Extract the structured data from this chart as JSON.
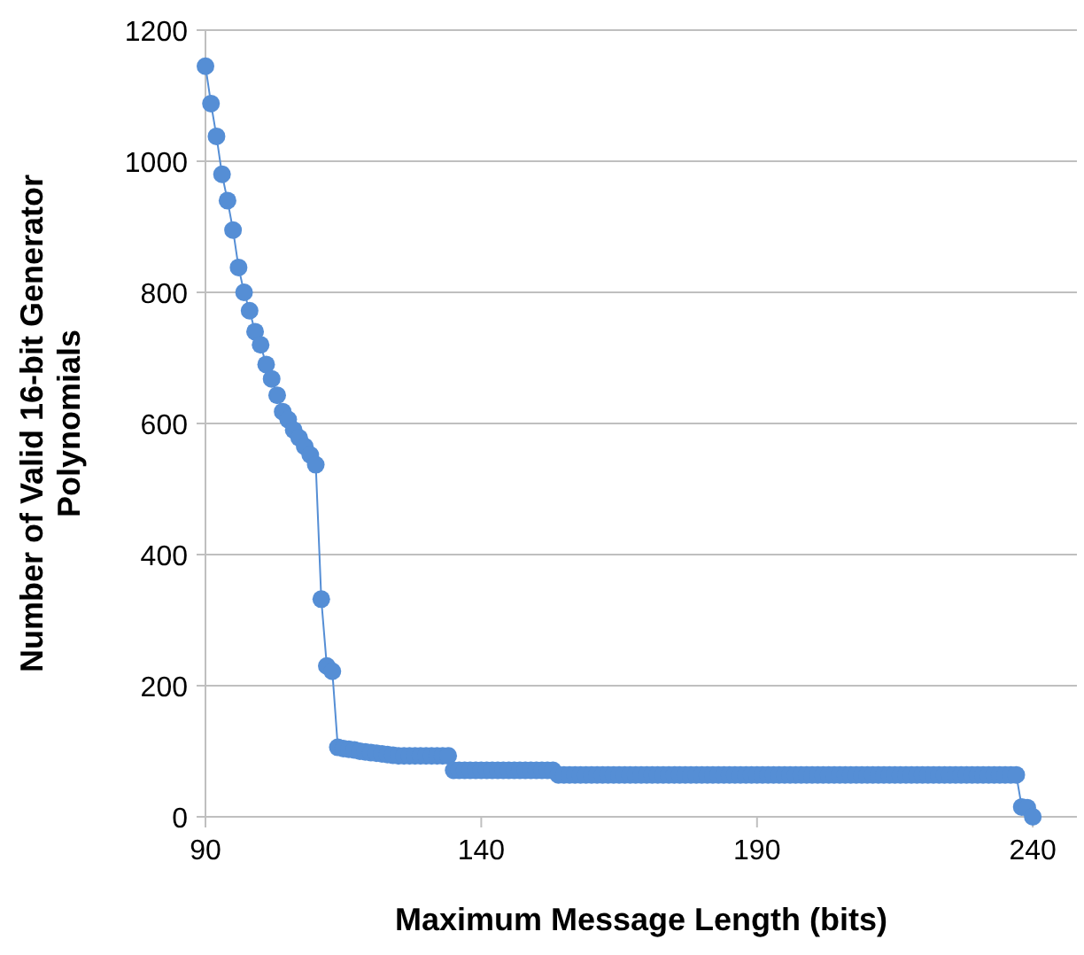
{
  "chart_data": {
    "type": "line",
    "xlabel": "Maximum Message Length (bits)",
    "ylabel": "Number of Valid 16-bit Generator Polynomials",
    "xlim": [
      90,
      248
    ],
    "xticks": [
      90,
      140,
      190,
      240
    ],
    "ylim": [
      0,
      1200
    ],
    "yticks": [
      0,
      200,
      400,
      600,
      800,
      1000,
      1200
    ],
    "grid": "y",
    "marker": "circle",
    "line_style": "solid",
    "series": [
      {
        "color": "#558ed5",
        "x": [
          90,
          91,
          92,
          93,
          94,
          95,
          96,
          97,
          98,
          99,
          100,
          101,
          102,
          103,
          104,
          105,
          106,
          107,
          108,
          109,
          110,
          111,
          112,
          113,
          114,
          115,
          116,
          117,
          118,
          119,
          120,
          121,
          122,
          123,
          124,
          125,
          126,
          127,
          128,
          129,
          130,
          131,
          132,
          133,
          134,
          135,
          136,
          137,
          138,
          139,
          140,
          141,
          142,
          143,
          144,
          145,
          146,
          147,
          148,
          149,
          150,
          151,
          152,
          153,
          154,
          155,
          156,
          157,
          158,
          159,
          160,
          161,
          162,
          163,
          164,
          165,
          166,
          167,
          168,
          169,
          170,
          171,
          172,
          173,
          174,
          175,
          176,
          177,
          178,
          179,
          180,
          181,
          182,
          183,
          184,
          185,
          186,
          187,
          188,
          189,
          190,
          191,
          192,
          193,
          194,
          195,
          196,
          197,
          198,
          199,
          200,
          201,
          202,
          203,
          204,
          205,
          206,
          207,
          208,
          209,
          210,
          211,
          212,
          213,
          214,
          215,
          216,
          217,
          218,
          219,
          220,
          221,
          222,
          223,
          224,
          225,
          226,
          227,
          228,
          229,
          230,
          231,
          232,
          233,
          234,
          235,
          236,
          237,
          238,
          239,
          240
        ],
        "values": [
          1145,
          1088,
          1038,
          980,
          940,
          895,
          838,
          800,
          772,
          740,
          720,
          690,
          668,
          643,
          618,
          606,
          590,
          578,
          565,
          552,
          537,
          332,
          230,
          222,
          106,
          104,
          103,
          102,
          100,
          99,
          98,
          97,
          96,
          95,
          94,
          93,
          93,
          93,
          93,
          93,
          93,
          93,
          93,
          93,
          93,
          71,
          71,
          71,
          71,
          71,
          71,
          71,
          71,
          71,
          71,
          71,
          71,
          71,
          71,
          71,
          71,
          71,
          71,
          71,
          64,
          64,
          64,
          64,
          64,
          64,
          64,
          64,
          64,
          64,
          64,
          64,
          64,
          64,
          64,
          64,
          64,
          64,
          64,
          64,
          64,
          64,
          64,
          64,
          64,
          64,
          64,
          64,
          64,
          64,
          64,
          64,
          64,
          64,
          64,
          64,
          64,
          64,
          64,
          64,
          64,
          64,
          64,
          64,
          64,
          64,
          64,
          64,
          64,
          64,
          64,
          64,
          64,
          64,
          64,
          64,
          64,
          64,
          64,
          64,
          64,
          64,
          64,
          64,
          64,
          64,
          64,
          64,
          64,
          64,
          64,
          64,
          64,
          64,
          64,
          64,
          64,
          64,
          64,
          64,
          64,
          64,
          64,
          64,
          15,
          14,
          0
        ]
      }
    ]
  }
}
